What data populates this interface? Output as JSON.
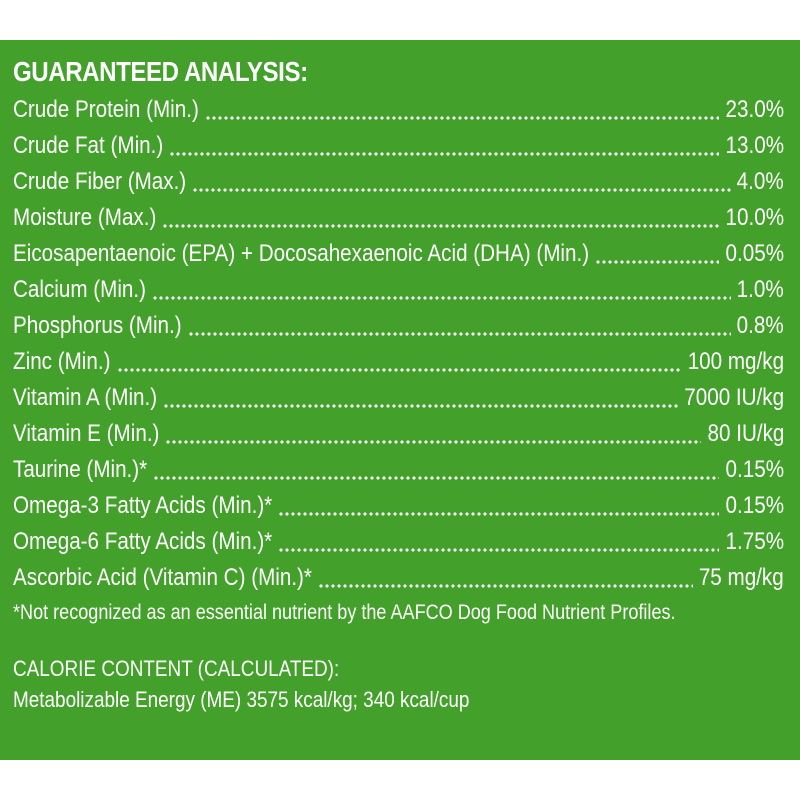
{
  "colors": {
    "panel_background": "#43a02a",
    "text": "#ffffff",
    "page_background": "#ffffff"
  },
  "analysis": {
    "heading": "GUARANTEED ANALYSIS:",
    "rows": [
      {
        "label": "Crude Protein (Min.)",
        "value": "23.0%"
      },
      {
        "label": "Crude Fat (Min.)",
        "value": "13.0%"
      },
      {
        "label": "Crude Fiber (Max.)",
        "value": "4.0%"
      },
      {
        "label": "Moisture (Max.)",
        "value": "10.0%"
      },
      {
        "label": "Eicosapentaenoic (EPA) + Docosahexaenoic Acid (DHA) (Min.)",
        "value": "0.05%"
      },
      {
        "label": "Calcium (Min.)",
        "value": "1.0%"
      },
      {
        "label": "Phosphorus (Min.)",
        "value": "0.8%"
      },
      {
        "label": "Zinc (Min.)",
        "value": "100 mg/kg"
      },
      {
        "label": "Vitamin A (Min.)",
        "value": "7000 IU/kg"
      },
      {
        "label": "Vitamin E (Min.)",
        "value": "80 IU/kg"
      },
      {
        "label": "Taurine (Min.)*",
        "value": "0.15%"
      },
      {
        "label": "Omega-3 Fatty Acids (Min.)*",
        "value": "0.15%"
      },
      {
        "label": "Omega-6 Fatty Acids (Min.)*",
        "value": "1.75%"
      },
      {
        "label": "Ascorbic Acid (Vitamin C) (Min.)*",
        "value": "75 mg/kg"
      }
    ],
    "footnote": "*Not recognized as an essential nutrient by the AAFCO Dog Food Nutrient Profiles."
  },
  "calorie": {
    "heading": "CALORIE CONTENT (CALCULATED):",
    "text": "Metabolizable Energy (ME) 3575 kcal/kg;  340 kcal/cup"
  }
}
